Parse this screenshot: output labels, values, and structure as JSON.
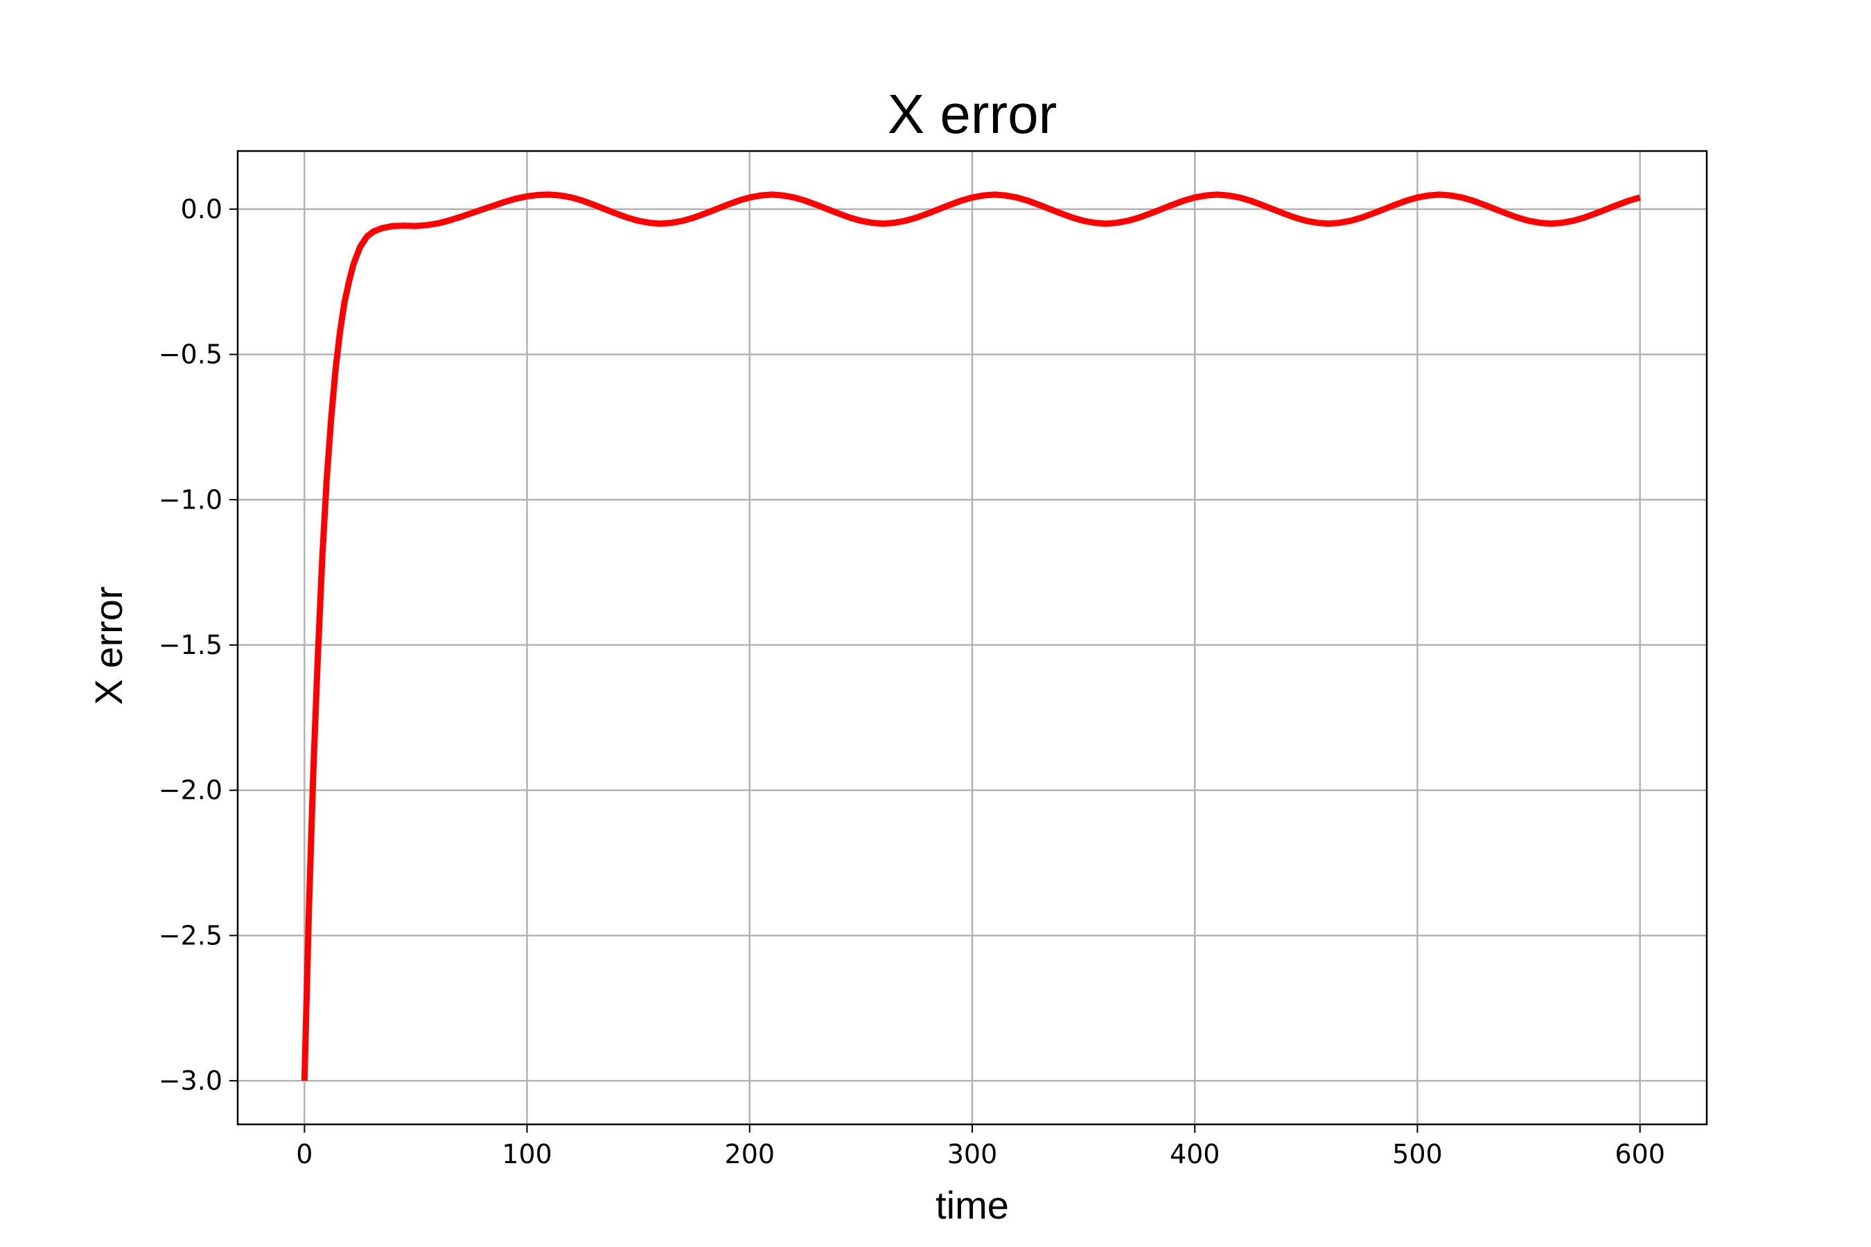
{
  "chart_data": {
    "type": "line",
    "title": "X error",
    "xlabel": "time",
    "ylabel": "X error",
    "xlim": [
      -30,
      630
    ],
    "ylim": [
      -3.15,
      0.2
    ],
    "x_ticks": [
      0,
      100,
      200,
      300,
      400,
      500,
      600
    ],
    "x_tick_labels": [
      "0",
      "100",
      "200",
      "300",
      "400",
      "500",
      "600"
    ],
    "y_ticks": [
      0.0,
      -0.5,
      -1.0,
      -1.5,
      -2.0,
      -2.5,
      -3.0
    ],
    "y_tick_labels": [
      "0.0",
      "−0.5",
      "−1.0",
      "−1.5",
      "−2.0",
      "−2.5",
      "−3.0"
    ],
    "grid": true,
    "legend": "none",
    "series": [
      {
        "color": "#ff0000",
        "x": [
          0,
          2,
          4,
          6,
          8,
          10,
          12,
          14,
          16,
          18,
          20,
          22,
          25,
          28,
          31,
          35,
          40,
          45,
          50,
          55,
          60,
          65,
          70,
          75,
          80,
          85,
          90,
          95,
          100,
          105,
          110,
          115,
          120,
          125,
          130,
          135,
          140,
          145,
          150,
          155,
          160,
          165,
          170,
          175,
          180,
          185,
          190,
          195,
          200,
          205,
          210,
          215,
          220,
          225,
          230,
          235,
          240,
          245,
          250,
          255,
          260,
          265,
          270,
          275,
          280,
          285,
          290,
          295,
          300,
          305,
          310,
          315,
          320,
          325,
          330,
          335,
          340,
          345,
          350,
          355,
          360,
          365,
          370,
          375,
          380,
          385,
          390,
          395,
          400,
          405,
          410,
          415,
          420,
          425,
          430,
          435,
          440,
          445,
          450,
          455,
          460,
          465,
          470,
          475,
          480,
          485,
          490,
          495,
          500,
          505,
          510,
          515,
          520,
          525,
          530,
          535,
          540,
          545,
          550,
          555,
          560,
          565,
          570,
          575,
          580,
          585,
          590,
          595,
          600
        ],
        "y": [
          -3.0,
          -2.41,
          -1.93,
          -1.54,
          -1.2,
          -0.93,
          -0.72,
          -0.55,
          -0.42,
          -0.32,
          -0.25,
          -0.19,
          -0.13,
          -0.095,
          -0.077,
          -0.065,
          -0.058,
          -0.057,
          -0.058,
          -0.055,
          -0.049,
          -0.039,
          -0.027,
          -0.014,
          -0.001,
          0.012,
          0.025,
          0.036,
          0.044,
          0.049,
          0.05,
          0.047,
          0.04,
          0.029,
          0.015,
          0.0,
          -0.015,
          -0.029,
          -0.04,
          -0.047,
          -0.05,
          -0.047,
          -0.04,
          -0.029,
          -0.015,
          0.0,
          0.015,
          0.029,
          0.04,
          0.047,
          0.05,
          0.047,
          0.04,
          0.029,
          0.015,
          0.0,
          -0.015,
          -0.029,
          -0.04,
          -0.047,
          -0.05,
          -0.047,
          -0.04,
          -0.029,
          -0.015,
          0.0,
          0.015,
          0.029,
          0.04,
          0.047,
          0.05,
          0.047,
          0.04,
          0.029,
          0.015,
          0.0,
          -0.015,
          -0.029,
          -0.04,
          -0.047,
          -0.05,
          -0.047,
          -0.04,
          -0.029,
          -0.015,
          0.0,
          0.015,
          0.029,
          0.04,
          0.047,
          0.05,
          0.047,
          0.04,
          0.029,
          0.015,
          0.0,
          -0.015,
          -0.029,
          -0.04,
          -0.047,
          -0.05,
          -0.047,
          -0.04,
          -0.029,
          -0.015,
          0.0,
          0.015,
          0.029,
          0.04,
          0.047,
          0.05,
          0.047,
          0.04,
          0.029,
          0.015,
          0.0,
          -0.015,
          -0.029,
          -0.04,
          -0.047,
          -0.05,
          -0.047,
          -0.04,
          -0.029,
          -0.015,
          0.0,
          0.015,
          0.029,
          0.04
        ]
      }
    ]
  }
}
